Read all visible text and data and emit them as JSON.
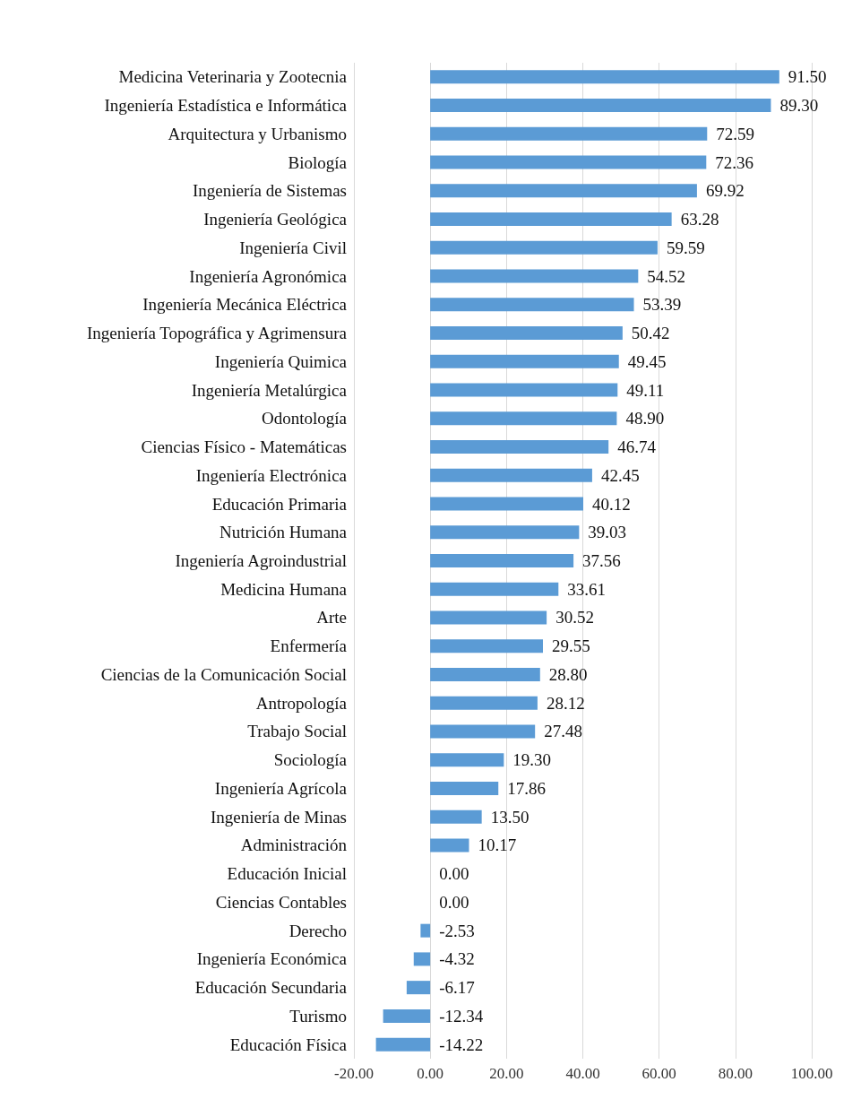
{
  "chart_data": {
    "type": "bar",
    "orientation": "horizontal",
    "color": "#5b9bd5",
    "grid": "x",
    "categories": [
      "Medicina Veterinaria y Zootecnia",
      "Ingeniería Estadística e Informática",
      "Arquitectura y Urbanismo",
      "Biología",
      "Ingeniería de Sistemas",
      "Ingeniería Geológica",
      "Ingeniería Civil",
      "Ingeniería Agronómica",
      "Ingeniería Mecánica Eléctrica",
      "Ingeniería Topográfica y Agrimensura",
      "Ingeniería Quimica",
      "Ingeniería Metalúrgica",
      "Odontología",
      "Ciencias Físico - Matemáticas",
      "Ingeniería Electrónica",
      "Educación Primaria",
      "Nutrición Humana",
      "Ingeniería Agroindustrial",
      "Medicina Humana",
      "Arte",
      "Enfermería",
      "Ciencias de la Comunicación Social",
      "Antropología",
      "Trabajo Social",
      "Sociología",
      "Ingeniería Agrícola",
      "Ingeniería de Minas",
      "Administración",
      "Educación Inicial",
      "Ciencias Contables",
      "Derecho",
      "Ingeniería Económica",
      "Educación Secundaria",
      "Turismo",
      "Educación Física"
    ],
    "values": [
      91.5,
      89.3,
      72.59,
      72.36,
      69.92,
      63.28,
      59.59,
      54.52,
      53.39,
      50.42,
      49.45,
      49.11,
      48.9,
      46.74,
      42.45,
      40.12,
      39.03,
      37.56,
      33.61,
      30.52,
      29.55,
      28.8,
      28.12,
      27.48,
      19.3,
      17.86,
      13.5,
      10.17,
      0,
      0,
      -2.53,
      -4.32,
      -6.17,
      -12.34,
      -14.22
    ],
    "value_labels": [
      "91.50",
      "89.30",
      "72.59",
      "72.36",
      "69.92",
      "63.28",
      "59.59",
      "54.52",
      "53.39",
      "50.42",
      "49.45",
      "49.11",
      "48.90",
      "46.74",
      "42.45",
      "40.12",
      "39.03",
      "37.56",
      "33.61",
      "30.52",
      "29.55",
      "28.80",
      "28.12",
      "27.48",
      "19.30",
      "17.86",
      "13.50",
      "10.17",
      "0.00",
      "0.00",
      "-2.53",
      "-4.32",
      "-6.17",
      "-12.34",
      "-14.22"
    ],
    "xlim": [
      -20,
      100
    ],
    "xticks": [
      {
        "value": -20,
        "label": "-20.00"
      },
      {
        "value": 0,
        "label": "0.00"
      },
      {
        "value": 20,
        "label": "20.00"
      },
      {
        "value": 40,
        "label": "40.00"
      },
      {
        "value": 60,
        "label": "60.00"
      },
      {
        "value": 80,
        "label": "80.00"
      },
      {
        "value": 100,
        "label": "100.00"
      }
    ]
  }
}
